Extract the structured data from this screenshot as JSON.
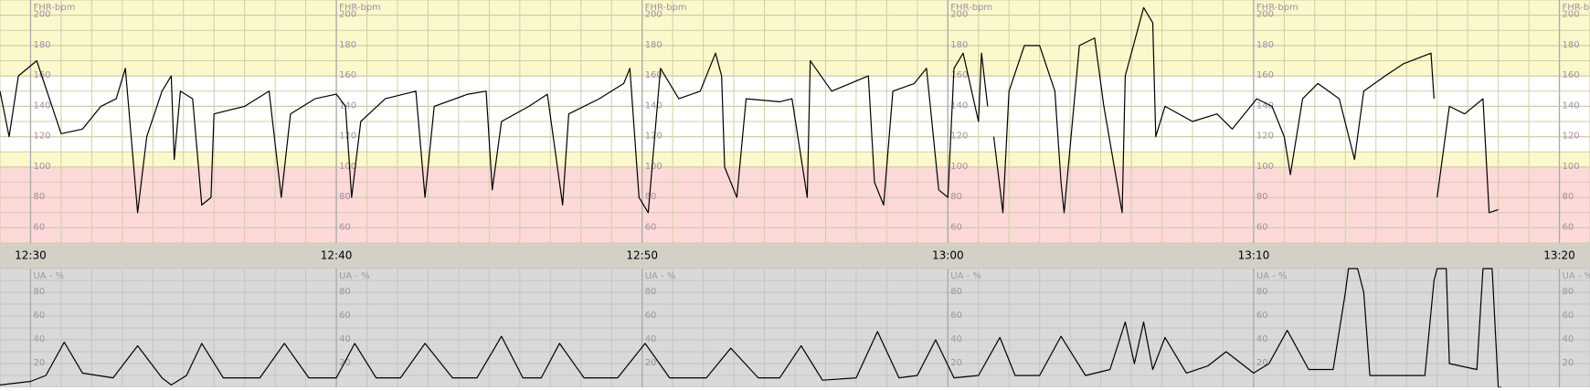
{
  "chart_data": [
    {
      "type": "line",
      "y_label": "FHR-bpm",
      "xlim": [
        749,
        801
      ],
      "xticks": [
        {
          "value": 750,
          "label": "12:30"
        },
        {
          "value": 760,
          "label": "12:40"
        },
        {
          "value": 770,
          "label": "12:50"
        },
        {
          "value": 780,
          "label": "13:00"
        },
        {
          "value": 790,
          "label": "13:10"
        },
        {
          "value": 800,
          "label": "13:20"
        }
      ],
      "ylim": [
        50,
        210
      ],
      "yticks": [
        60,
        80,
        100,
        120,
        140,
        160,
        180,
        200
      ],
      "grid": true,
      "bands": [
        {
          "from": 50,
          "to": 100,
          "color": "#fdd9d9"
        },
        {
          "from": 100,
          "to": 110,
          "color": "#fbf8cb"
        },
        {
          "from": 110,
          "to": 160,
          "color": "#ffffff"
        },
        {
          "from": 160,
          "to": 210,
          "color": "#fbf8cb"
        }
      ],
      "series": [
        {
          "color": "#000000",
          "x": [
            749.0,
            749.3,
            749.6,
            750.2,
            751.0,
            751.7,
            752.3,
            752.8,
            753.1,
            753.5,
            753.8,
            754.3,
            754.6,
            754.7,
            754.9,
            755.3,
            755.6,
            755.9,
            756.0,
            757.0,
            757.8,
            758.2,
            758.5,
            759.3,
            760.0,
            760.3,
            760.5,
            760.8,
            761.6,
            762.6,
            762.9,
            763.2,
            764.3,
            764.9,
            765.1,
            765.4,
            766.3,
            766.9,
            767.4,
            767.6,
            768.6,
            769.4,
            769.6,
            769.9,
            770.2,
            770.6,
            771.2,
            771.9,
            772.4,
            772.6,
            772.7,
            773.1,
            773.4,
            774.5,
            774.9,
            775.4,
            775.5,
            776.2,
            777.4,
            777.6,
            777.9,
            778.2,
            778.9,
            779.3,
            779.7,
            780.0,
            780.2,
            780.5,
            781.0,
            781.1,
            781.3,
            null,
            781.5,
            781.8,
            782.0,
            782.5,
            783.0,
            783.5,
            783.7,
            783.8,
            784.3,
            784.8,
            785.1,
            785.4,
            785.7,
            785.8,
            786.4,
            786.7,
            786.8,
            787.1,
            788.0,
            788.8,
            789.3,
            790.1,
            790.6,
            791.0,
            791.2,
            791.6,
            792.1,
            792.8,
            793.3,
            793.6,
            794.3,
            794.9,
            795.8,
            795.9,
            null,
            796.0,
            796.4,
            796.9,
            797.5,
            797.7,
            798.0
          ],
          "values": [
            150,
            120,
            160,
            170,
            122,
            125,
            140,
            145,
            165,
            70,
            120,
            150,
            160,
            105,
            150,
            145,
            75,
            80,
            135,
            140,
            150,
            80,
            135,
            145,
            148,
            140,
            80,
            130,
            145,
            150,
            80,
            140,
            148,
            150,
            85,
            130,
            140,
            148,
            75,
            135,
            145,
            155,
            165,
            80,
            70,
            165,
            145,
            150,
            175,
            160,
            100,
            80,
            145,
            143,
            145,
            80,
            170,
            150,
            160,
            90,
            75,
            150,
            155,
            165,
            85,
            80,
            165,
            175,
            130,
            175,
            140,
            null,
            120,
            70,
            150,
            180,
            180,
            150,
            90,
            70,
            180,
            185,
            140,
            105,
            70,
            160,
            205,
            195,
            120,
            140,
            130,
            135,
            125,
            145,
            140,
            120,
            95,
            145,
            155,
            145,
            105,
            150,
            160,
            168,
            175,
            145,
            null,
            80,
            140,
            135,
            145,
            70,
            72
          ]
        }
      ]
    },
    {
      "type": "line",
      "y_label": "UA - %",
      "xlim": [
        749,
        801
      ],
      "ylim": [
        0,
        100
      ],
      "yticks": [
        20,
        40,
        60,
        80
      ],
      "grid": true,
      "bands": [
        {
          "from": 0,
          "to": 100,
          "color": "#d9d9d9"
        }
      ],
      "series": [
        {
          "color": "#000000",
          "x": [
            749.0,
            750.0,
            750.5,
            751.1,
            751.7,
            752.7,
            753.5,
            754.3,
            754.6,
            755.1,
            755.6,
            756.3,
            757.5,
            758.3,
            759.1,
            760.0,
            760.6,
            761.3,
            762.1,
            762.9,
            763.8,
            764.6,
            765.4,
            766.1,
            766.7,
            767.3,
            768.1,
            769.2,
            770.1,
            770.9,
            772.1,
            772.9,
            773.8,
            774.5,
            775.2,
            775.9,
            777.0,
            777.7,
            778.4,
            779.0,
            779.6,
            780.2,
            781.0,
            781.7,
            782.2,
            783.0,
            783.7,
            784.5,
            785.3,
            785.8,
            786.1,
            786.4,
            786.7,
            787.1,
            787.8,
            788.5,
            789.1,
            790.0,
            790.5,
            791.1,
            791.8,
            792.6,
            793.0,
            793.1,
            793.4,
            793.6,
            793.8,
            795.6,
            795.9,
            796.0,
            796.3,
            796.4,
            797.3,
            797.5,
            797.8,
            798.0,
            798.1
          ],
          "values": [
            2,
            5,
            10,
            38,
            12,
            8,
            35,
            8,
            2,
            10,
            37,
            8,
            8,
            37,
            8,
            8,
            37,
            8,
            8,
            37,
            8,
            8,
            43,
            8,
            8,
            37,
            8,
            8,
            37,
            8,
            8,
            33,
            8,
            8,
            35,
            6,
            8,
            47,
            8,
            10,
            40,
            8,
            10,
            42,
            10,
            10,
            43,
            10,
            15,
            55,
            20,
            55,
            15,
            42,
            12,
            18,
            30,
            12,
            20,
            48,
            15,
            15,
            80,
            100,
            100,
            80,
            10,
            10,
            90,
            100,
            100,
            20,
            15,
            100,
            100,
            0,
            0
          ]
        }
      ]
    }
  ]
}
